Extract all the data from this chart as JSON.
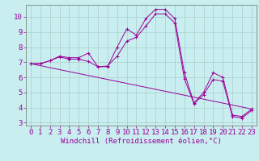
{
  "xlabel": "Windchill (Refroidissement éolien,°C)",
  "bg_color": "#c8eef0",
  "line_color": "#990099",
  "grid_color": "#aacccc",
  "spine_color": "#778877",
  "xlim": [
    -0.5,
    23.5
  ],
  "ylim": [
    2.8,
    10.8
  ],
  "xticks": [
    0,
    1,
    2,
    3,
    4,
    5,
    6,
    7,
    8,
    9,
    10,
    11,
    12,
    13,
    14,
    15,
    16,
    17,
    18,
    19,
    20,
    21,
    22,
    23
  ],
  "yticks": [
    3,
    4,
    5,
    6,
    7,
    8,
    9,
    10
  ],
  "curve1_x": [
    0,
    1,
    2,
    3,
    4,
    5,
    6,
    7,
    8,
    9,
    10,
    11,
    12,
    13,
    14,
    15,
    16,
    17,
    18,
    19,
    20,
    21,
    22,
    23
  ],
  "curve1_y": [
    6.9,
    6.9,
    7.1,
    7.4,
    7.3,
    7.3,
    7.6,
    6.7,
    6.7,
    8.0,
    9.2,
    8.8,
    9.9,
    10.5,
    10.5,
    9.9,
    6.3,
    4.3,
    5.0,
    6.3,
    6.0,
    3.5,
    3.4,
    3.9
  ],
  "curve2_x": [
    0,
    1,
    2,
    3,
    4,
    5,
    6,
    7,
    8,
    9,
    10,
    11,
    12,
    13,
    14,
    15,
    16,
    17,
    18,
    19,
    20,
    21,
    22,
    23
  ],
  "curve2_y": [
    6.9,
    6.9,
    7.1,
    7.35,
    7.2,
    7.2,
    7.05,
    6.7,
    6.75,
    7.4,
    8.4,
    8.65,
    9.4,
    10.2,
    10.2,
    9.6,
    5.9,
    4.25,
    4.85,
    5.85,
    5.75,
    3.4,
    3.3,
    3.8
  ],
  "curve3_x": [
    0,
    23
  ],
  "curve3_y": [
    6.9,
    3.9
  ],
  "font_size": 6.5,
  "xlabel_fontsize": 6.5
}
